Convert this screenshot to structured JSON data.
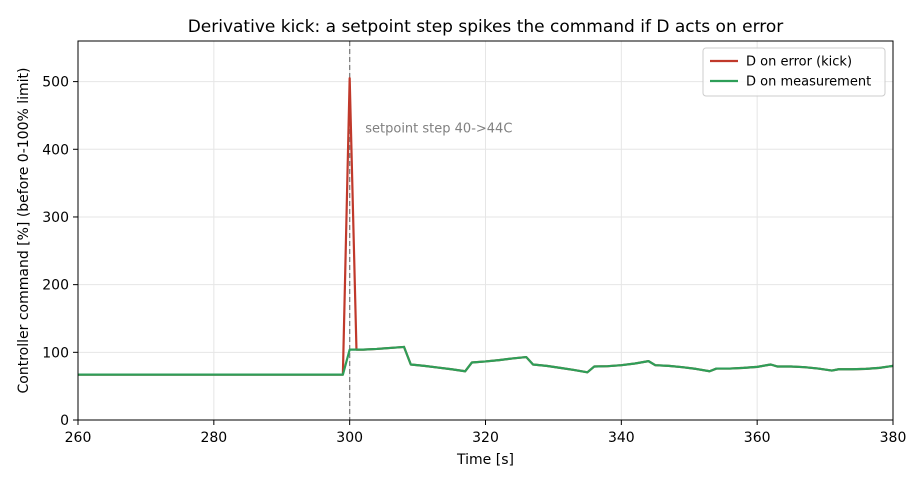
{
  "chart_data": {
    "type": "line",
    "title": "Derivative kick: a setpoint step spikes the command if D acts on error",
    "xlabel": "Time  [s]",
    "ylabel": "Controller command  [%]  (before 0-100% limit)",
    "xlim": [
      260,
      380
    ],
    "ylim": [
      0,
      560
    ],
    "xticks": [
      260,
      280,
      300,
      320,
      340,
      360,
      380
    ],
    "yticks": [
      0,
      100,
      200,
      300,
      400,
      500
    ],
    "grid": true,
    "legend_position": "top-right",
    "annotations": [
      {
        "text": "setpoint step 40->44C",
        "x": 302,
        "y": 432
      }
    ],
    "vline": {
      "x": 300,
      "style": "dashed",
      "color": "#808080"
    },
    "series": [
      {
        "name": "D on error  (kick)",
        "color": "#c0392b",
        "x": [
          260,
          299,
          300,
          301,
          302,
          304,
          306,
          308,
          309,
          311,
          313,
          315,
          317,
          318,
          320,
          322,
          324,
          326,
          327,
          329,
          331,
          333,
          335,
          336,
          338,
          340,
          342,
          344,
          345,
          347,
          349,
          351,
          353,
          354,
          356,
          358,
          360,
          362,
          363,
          365,
          367,
          369,
          371,
          372,
          374,
          376,
          378,
          380
        ],
        "y": [
          67,
          67,
          505,
          104,
          104,
          105,
          106.5,
          108,
          82,
          80,
          77.5,
          75,
          72,
          85,
          86.5,
          88.5,
          91,
          93,
          82,
          80,
          77,
          74,
          70.5,
          79,
          79.5,
          81,
          83.5,
          87,
          81,
          80,
          78,
          75.5,
          72,
          76,
          76,
          77,
          78.5,
          82,
          79,
          79,
          78,
          76,
          73,
          75,
          75,
          75.5,
          77,
          80
        ]
      },
      {
        "name": "D on measurement",
        "color": "#2e9e58",
        "x": [
          260,
          299,
          300,
          302,
          304,
          306,
          308,
          309,
          311,
          313,
          315,
          317,
          318,
          320,
          322,
          324,
          326,
          327,
          329,
          331,
          333,
          335,
          336,
          338,
          340,
          342,
          344,
          345,
          347,
          349,
          351,
          353,
          354,
          356,
          358,
          360,
          362,
          363,
          365,
          367,
          369,
          371,
          372,
          374,
          376,
          378,
          380
        ],
        "y": [
          67,
          67,
          104,
          104,
          105,
          106.5,
          108,
          82,
          80,
          77.5,
          75,
          72,
          85,
          86.5,
          88.5,
          91,
          93,
          82,
          80,
          77,
          74,
          70.5,
          79,
          79.5,
          81,
          83.5,
          87,
          81,
          80,
          78,
          75.5,
          72,
          76,
          76,
          77,
          78.5,
          82,
          79,
          79,
          78,
          76,
          73,
          75,
          75,
          75.5,
          77,
          80
        ]
      }
    ]
  }
}
